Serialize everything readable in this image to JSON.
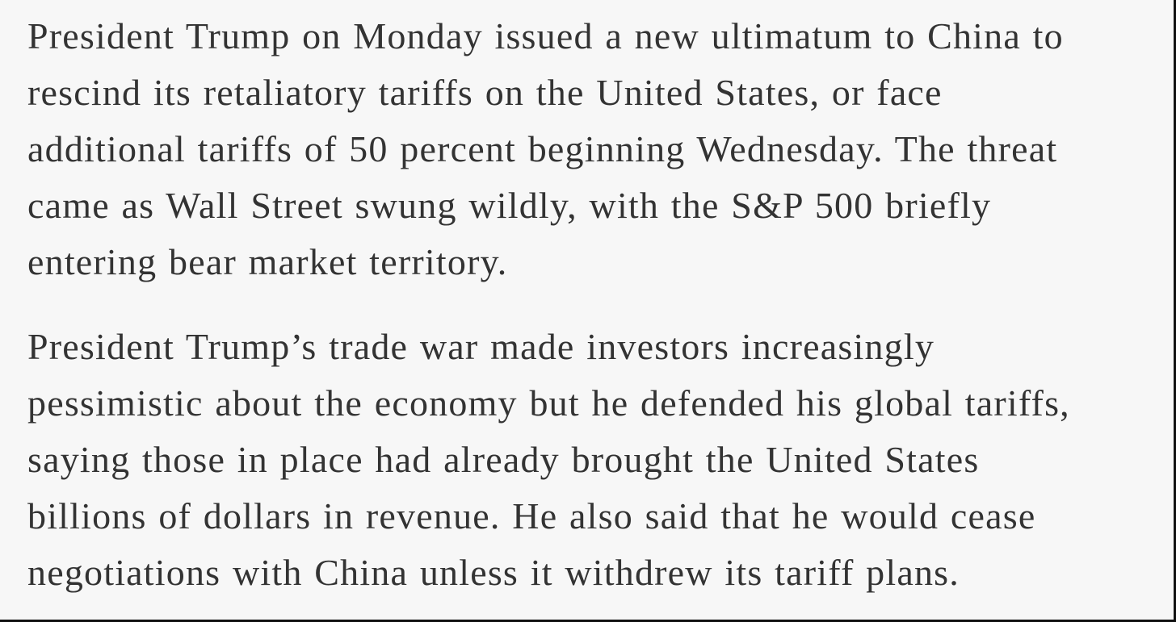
{
  "paragraphs": [
    {
      "lines": [
        "President Trump on Monday issued a new ultimatum to China to",
        "rescind its retaliatory tariffs on the United States, or face",
        "additional tariffs of 50 percent beginning Wednesday. The threat",
        "came as Wall Street swung wildly, with the S&P 500 briefly",
        "entering bear market territory."
      ]
    },
    {
      "lines": [
        "President Trump’s trade war made investors increasingly",
        "pessimistic about the economy but he defended his global tariffs,",
        "saying those in place had already brought the United States",
        "billions of dollars in revenue. He also said that he would cease",
        "negotiations with China unless it withdrew its tariff plans."
      ]
    }
  ]
}
